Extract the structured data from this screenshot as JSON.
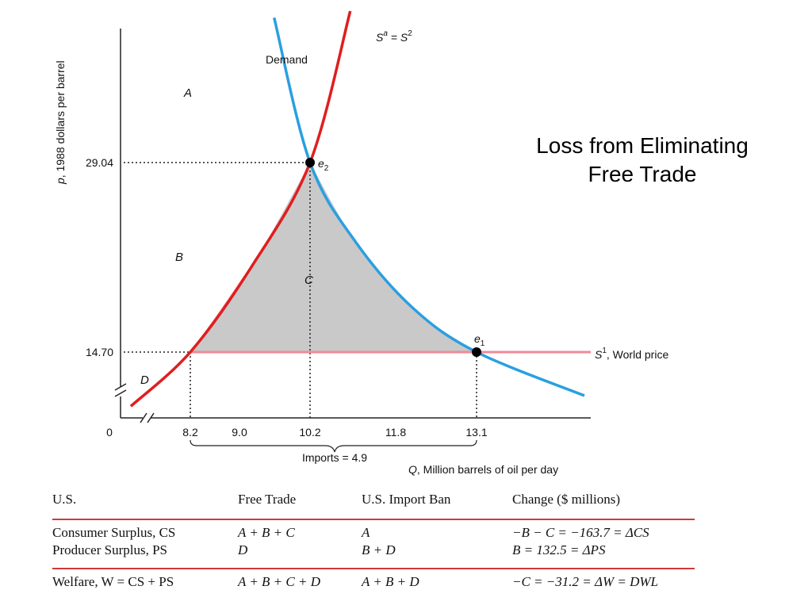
{
  "title": {
    "line1": "Loss from Eliminating",
    "line2": "Free Trade"
  },
  "chart_data": {
    "type": "line",
    "xlabel_italic": "Q",
    "xlabel_rest": ", Million barrels of oil per day",
    "ylabel_italic": "p",
    "ylabel_rest": ", 1988 dollars per barrel",
    "x_origin_label": "0",
    "x_ticks": [
      "8.2",
      "9.0",
      "10.2",
      "11.8",
      "13.1"
    ],
    "y_ticks": [
      "29.04",
      "14.70"
    ],
    "series": [
      {
        "name": "Demand",
        "points": [
          [
            9.6,
            40.0
          ],
          [
            10.2,
            29.04
          ],
          [
            11.0,
            23.0
          ],
          [
            12.0,
            18.0
          ],
          [
            13.1,
            14.7
          ],
          [
            14.5,
            11.4
          ]
        ]
      },
      {
        "name": "S^a = S^2",
        "points": [
          [
            6.6,
            10.6
          ],
          [
            8.2,
            14.7
          ],
          [
            9.2,
            21.0
          ],
          [
            10.2,
            29.04
          ],
          [
            10.9,
            40.5
          ]
        ]
      },
      {
        "name": "S^1, World price",
        "points": [
          [
            8.2,
            14.7
          ],
          [
            14.0,
            14.7
          ]
        ]
      }
    ],
    "equilibria": [
      {
        "label": "e",
        "sub": "2",
        "q": 10.2,
        "p": 29.04
      },
      {
        "label": "e",
        "sub": "1",
        "q": 13.1,
        "p": 14.7
      }
    ],
    "regions": [
      "A",
      "B",
      "C",
      "D"
    ],
    "supply_label": {
      "base": "S",
      "sup1": "a",
      "mid": " = S",
      "sup2": "2"
    },
    "world_label": {
      "base": "S",
      "sup": "1",
      "rest": ", World price"
    },
    "demand_label": "Demand",
    "imports_label": "Imports = 4.9",
    "colors": {
      "demand": "#2a9fe0",
      "supply": "#e01e1e",
      "world": "#f08a98",
      "shade": "#c9c9c9"
    }
  },
  "table": {
    "headers": [
      "U.S.",
      "Free Trade",
      "U.S. Import Ban",
      "Change ($ millions)"
    ],
    "rows": [
      [
        "Consumer Surplus, CS",
        "A + B + C",
        "A",
        "−B − C = −163.7 = ΔCS"
      ],
      [
        "Producer Surplus, PS",
        "D",
        "B + D",
        "B = 132.5 = ΔPS"
      ],
      [
        "Welfare, W = CS + PS",
        "A + B + C + D",
        "A + B + D",
        "−C = −31.2 = ΔW = DWL"
      ]
    ]
  }
}
